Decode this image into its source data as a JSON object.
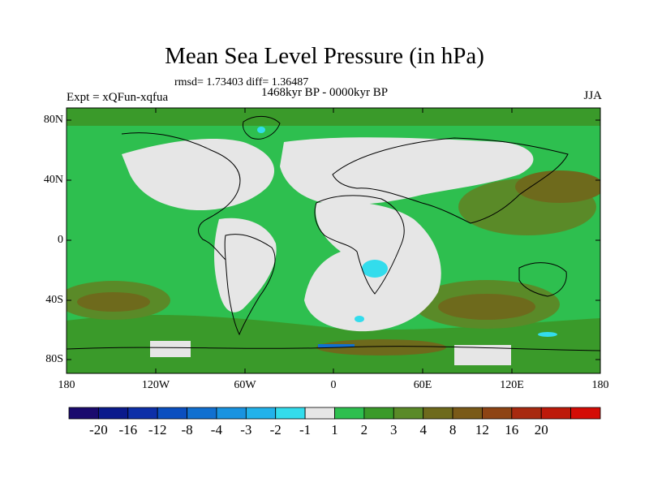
{
  "map": {
    "title": "Mean Sea Level Pressure (in hPa)",
    "stats": "rmsd= 1.73403 diff= 1.36487",
    "period": "1468kyr BP - 0000kyr BP",
    "experiment": "Expt = xQFun-xqfua",
    "season": "JJA",
    "lat_labels": [
      "80N",
      "40N",
      "0",
      "40S",
      "80S"
    ],
    "lon_labels": [
      "180",
      "120W",
      "60W",
      "0",
      "60E",
      "120E",
      "180"
    ]
  },
  "colorbar": {
    "colors": [
      "#1a0a6e",
      "#0b1a8c",
      "#0d2fa8",
      "#0b4fc0",
      "#1170d0",
      "#1993e0",
      "#22b2ea",
      "#33dcec",
      "#e6e6e6",
      "#2ebf4f",
      "#3a9a2a",
      "#5a8a28",
      "#6e6a1c",
      "#7a5a18",
      "#8e4414",
      "#a82a10",
      "#bd1a0a",
      "#d40c06"
    ],
    "labels": [
      "-20",
      "-16",
      "-12",
      "-8",
      "-4",
      "-3",
      "-2",
      "-1",
      "1",
      "2",
      "3",
      "4",
      "8",
      "12",
      "16",
      "20"
    ]
  }
}
